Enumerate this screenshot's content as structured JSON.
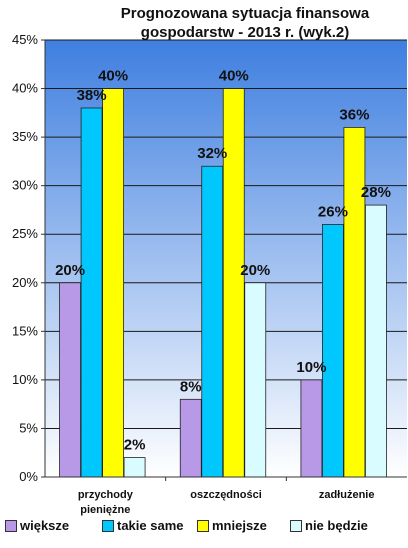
{
  "chart_data": {
    "type": "bar",
    "title": "Prognozowana sytuacja finansowa gospodarstw - 2013 r. (wyk.2)",
    "categories": [
      "przychody pieniężne",
      "oszczędności",
      "zadłużenie"
    ],
    "series": [
      {
        "name": "większe",
        "color": "#b899e8",
        "values": [
          20,
          8,
          10
        ],
        "labels": [
          "20%",
          "8%",
          "10%"
        ]
      },
      {
        "name": "takie same",
        "color": "#00c8ff",
        "values": [
          38,
          32,
          26
        ],
        "labels": [
          "38%",
          "32%",
          "26%"
        ]
      },
      {
        "name": "mniejsze",
        "color": "#ffff00",
        "values": [
          40,
          40,
          36
        ],
        "labels": [
          "40%",
          "40%",
          "36%"
        ]
      },
      {
        "name": "nie będzie",
        "color": "#d8fcff",
        "values": [
          2,
          20,
          28
        ],
        "labels": [
          "2%",
          "20%",
          "28%"
        ]
      }
    ],
    "ylim": [
      0,
      45
    ],
    "yticks": [
      "0%",
      "5%",
      "10%",
      "15%",
      "20%",
      "25%",
      "30%",
      "35%",
      "40%",
      "45%"
    ],
    "grid": true,
    "legend": "bottom",
    "background_gradient": [
      "#3f7fe0",
      "#ffffff"
    ]
  }
}
